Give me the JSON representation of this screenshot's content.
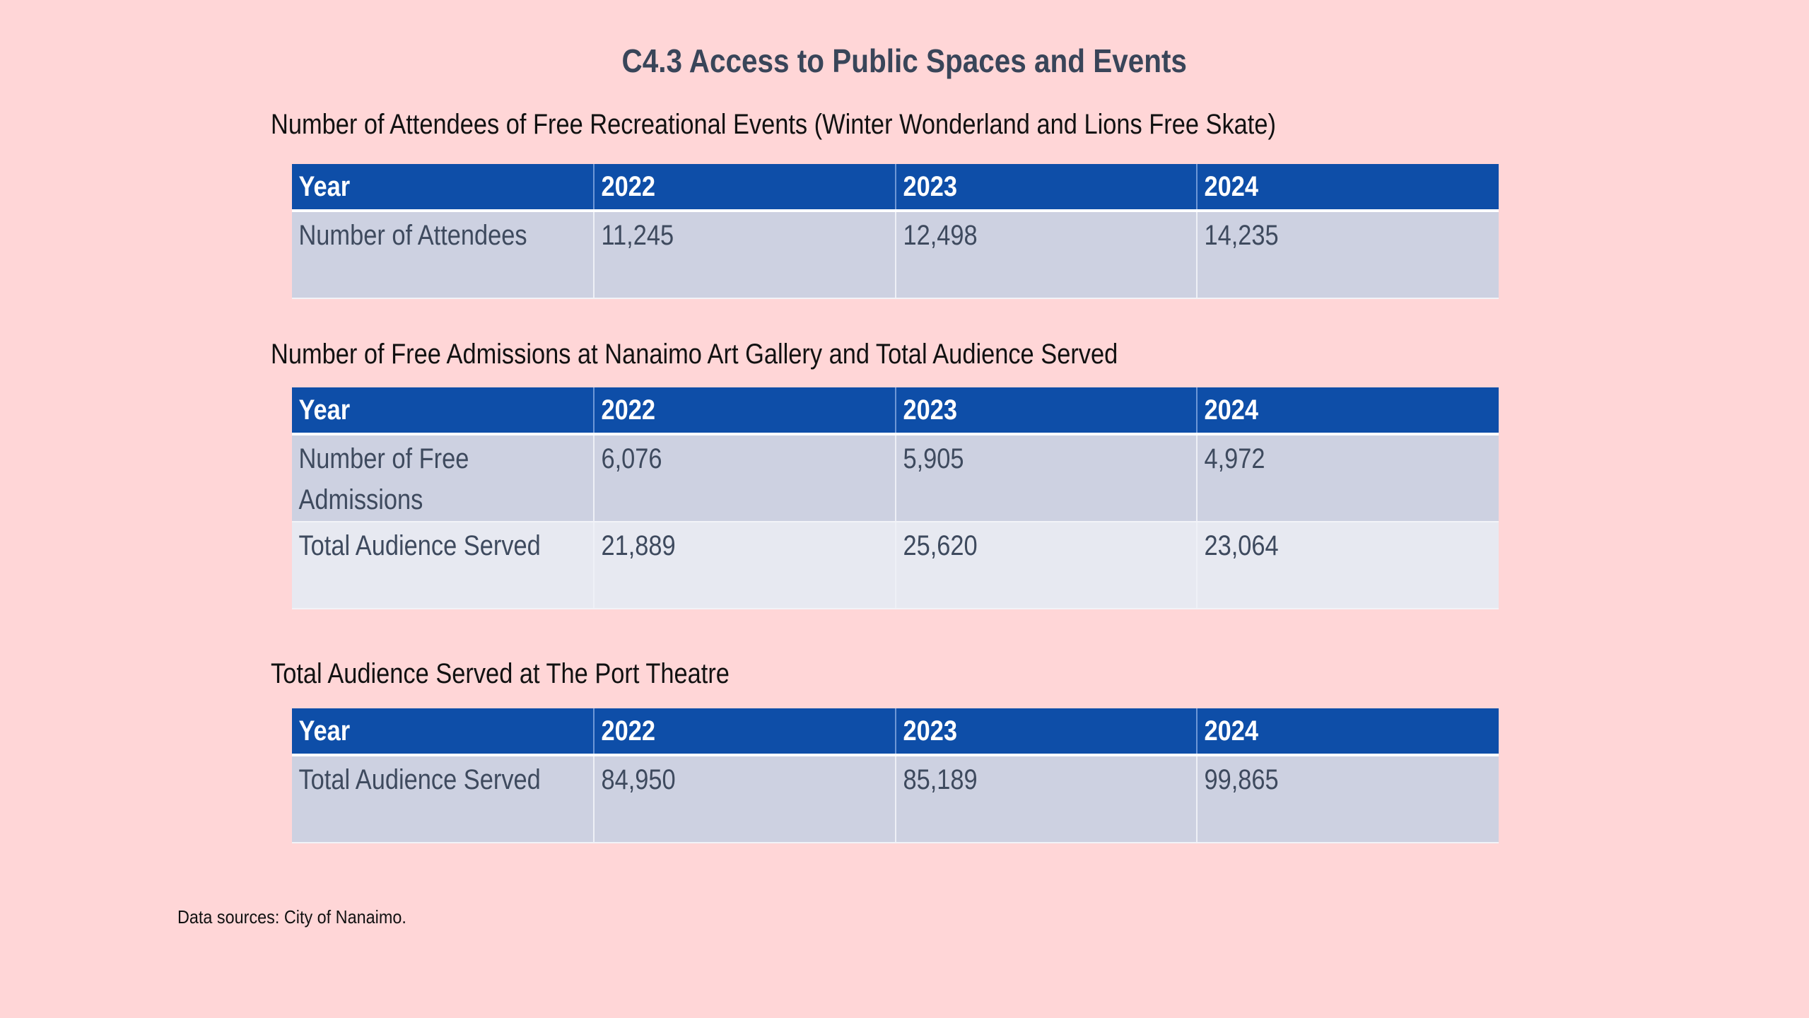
{
  "page": {
    "title": "C4.3 Access to Public Spaces and Events",
    "footer": "Data sources: City of Nanaimo."
  },
  "tables": [
    {
      "subtitle": "Number of Attendees of Free Recreational Events (Winter Wonderland and Lions Free Skate)",
      "headers": [
        "Year",
        "2022",
        "2023",
        "2024"
      ],
      "rows": [
        [
          "Number of Attendees",
          "11,245",
          "12,498",
          "14,235"
        ]
      ]
    },
    {
      "subtitle": "Number of Free Admissions at Nanaimo Art Gallery and Total Audience Served",
      "headers": [
        "Year",
        "2022",
        "2023",
        "2024"
      ],
      "rows": [
        [
          "Number of Free Admissions",
          "6,076",
          "5,905",
          "4,972"
        ],
        [
          "Total Audience Served",
          "21,889",
          "25,620",
          "23,064"
        ]
      ]
    },
    {
      "subtitle": "Total Audience Served at The Port Theatre",
      "headers": [
        "Year",
        "2022",
        "2023",
        "2024"
      ],
      "rows": [
        [
          "Total Audience Served",
          "84,950",
          "85,189",
          "99,865"
        ]
      ]
    }
  ],
  "colors": {
    "background": "#FFD6D7",
    "header_bg": "#0E4EA8",
    "row_dark": "#CDD1E1",
    "row_light": "#E7E9F1",
    "title_text": "#394559",
    "body_text": "#3E4A5E"
  }
}
